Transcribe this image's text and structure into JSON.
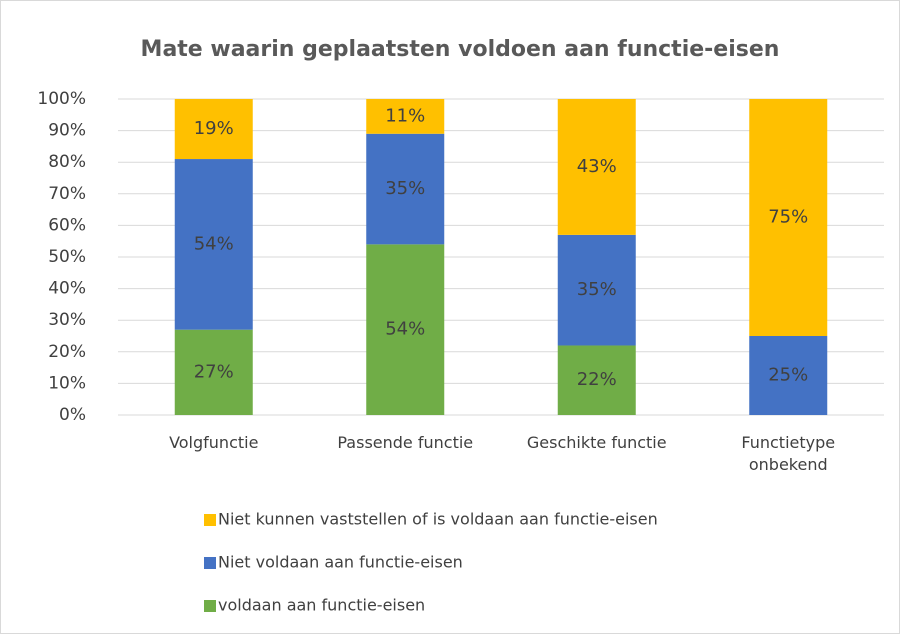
{
  "chart_data": {
    "type": "stacked_bar",
    "title": "Mate waarin geplaatsten voldoen aan functie-eisen",
    "categories": [
      "Volgfunctie",
      "Passende functie",
      "Geschikte functie",
      "Functietype\nonbekend"
    ],
    "series": [
      {
        "name": "Niet kunnen vaststellen of is voldaan aan functie-eisen",
        "color": "#ffc000",
        "values": [
          19,
          11,
          43,
          75
        ],
        "value_labels": [
          "19%",
          "11%",
          "43%",
          "75%"
        ]
      },
      {
        "name": "Niet voldaan aan functie-eisen",
        "color": "#4472c4",
        "values": [
          54,
          35,
          35,
          25
        ],
        "value_labels": [
          "54%",
          "35%",
          "35%",
          "25%"
        ]
      },
      {
        "name": "voldaan aan functie-eisen",
        "color": "#70ad47",
        "values": [
          27,
          54,
          22,
          0
        ],
        "value_labels": [
          "27%",
          "54%",
          "22%",
          null
        ]
      }
    ],
    "ylim": [
      0,
      100
    ],
    "yticks": [
      {
        "value": 0,
        "label": "0%"
      },
      {
        "value": 10,
        "label": "10%"
      },
      {
        "value": 20,
        "label": "20%"
      },
      {
        "value": 30,
        "label": "30%"
      },
      {
        "value": 40,
        "label": "40%"
      },
      {
        "value": 50,
        "label": "50%"
      },
      {
        "value": 60,
        "label": "60%"
      },
      {
        "value": 70,
        "label": "70%"
      },
      {
        "value": 80,
        "label": "80%"
      },
      {
        "value": 90,
        "label": "90%"
      },
      {
        "value": 100,
        "label": "100%"
      }
    ],
    "grid": true
  }
}
